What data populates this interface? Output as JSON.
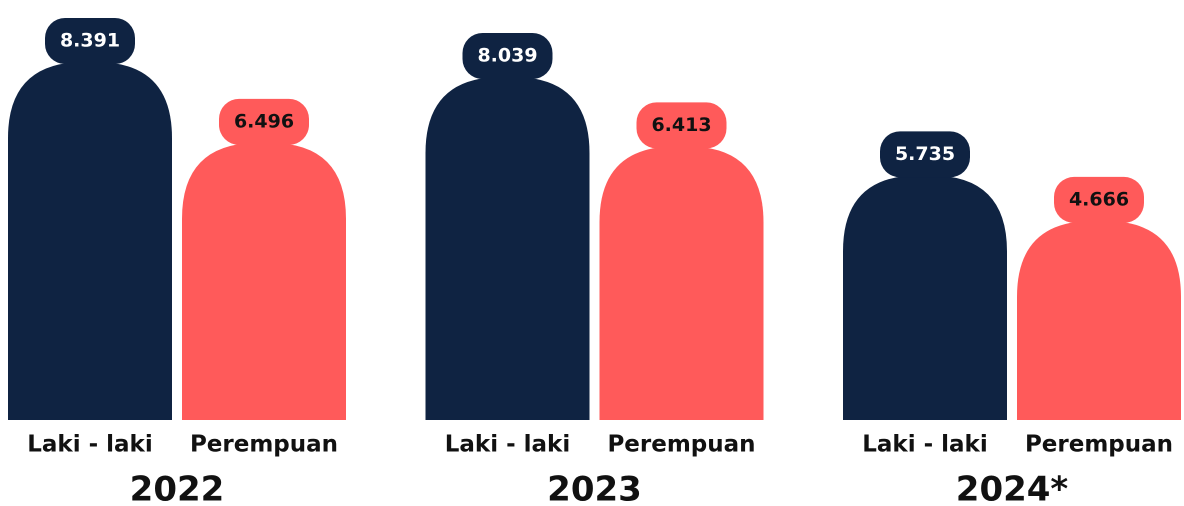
{
  "chart_data": {
    "type": "bar",
    "categories": [
      "2022",
      "2023",
      "2024*"
    ],
    "series": [
      {
        "name": "Laki - laki",
        "color": "#0f2342",
        "values": [
          8391,
          8039,
          5735
        ],
        "value_labels": [
          "8.391",
          "8.039",
          "5.735"
        ]
      },
      {
        "name": "Perempuan",
        "color": "#ff5a5a",
        "values": [
          6496,
          6413,
          4666
        ],
        "value_labels": [
          "6.496",
          "6.413",
          "4.666"
        ]
      }
    ]
  }
}
